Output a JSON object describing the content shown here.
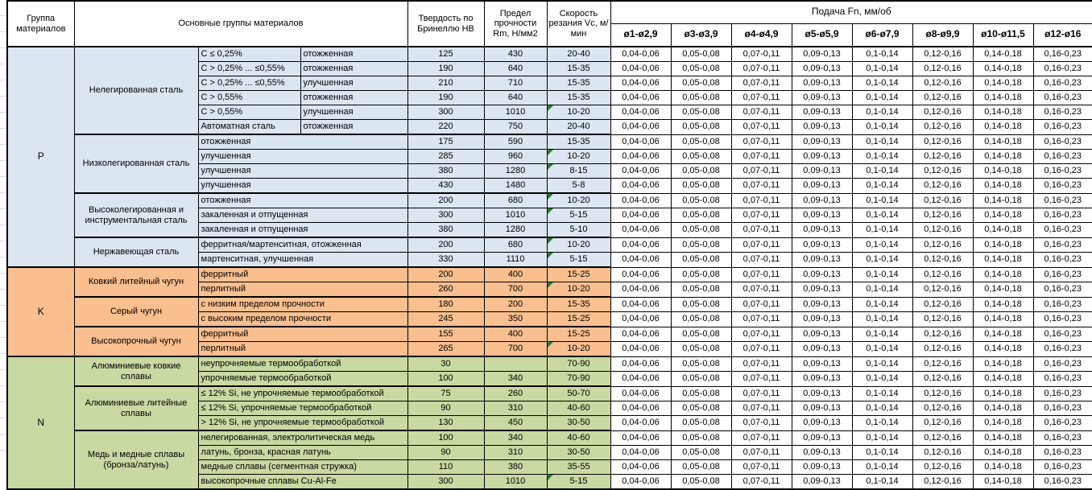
{
  "header": {
    "col_group": "Группа материалов",
    "col_main": "Основные группы материалов",
    "col_hb": "Твердость по Бринеллю НВ",
    "col_rm": "Предел прочности Rm, Н/мм2",
    "col_vc": "Скорость резания Vc, м/мин",
    "feed_title": "Подача Fn, мм/об",
    "feed_cols": [
      "ø1-ø2,9",
      "ø3-ø3,9",
      "ø4-ø4,9",
      "ø5-ø5,9",
      "ø6-ø7,9",
      "ø8-ø9,9",
      "ø10-ø11,5",
      "ø12-ø16"
    ]
  },
  "feed_values": [
    "0,04-0,06",
    "0,05-0,08",
    "0,07-0,11",
    "0,09-0,13",
    "0,1-0,14",
    "0,12-0,16",
    "0,14-0,18",
    "0,16-0,23"
  ],
  "flag_color": "#2e7d32",
  "groups": [
    {
      "code": "P",
      "color": "#dce6f1",
      "subgroups": [
        {
          "name": "Нелегированная сталь",
          "rows": [
            {
              "c1": "С ≤ 0,25%",
              "c2": "отожженная",
              "hb": "125",
              "rm": "430",
              "vc": "20-40",
              "flag": false
            },
            {
              "c1": "С > 0,25% ... ≤0,55%",
              "c2": "отожженная",
              "hb": "190",
              "rm": "640",
              "vc": "15-35",
              "flag": false
            },
            {
              "c1": "С > 0,25% ... ≤0,55%",
              "c2": "улучшенная",
              "hb": "210",
              "rm": "710",
              "vc": "15-35",
              "flag": false
            },
            {
              "c1": "С > 0,55%",
              "c2": "отожженная",
              "hb": "190",
              "rm": "640",
              "vc": "15-35",
              "flag": false
            },
            {
              "c1": "С > 0,55%",
              "c2": "улучшенная",
              "hb": "300",
              "rm": "1010",
              "vc": "10-20",
              "flag": true
            },
            {
              "c1": "Автоматная сталь",
              "c2": "отожженная",
              "hb": "220",
              "rm": "750",
              "vc": "20-40",
              "flag": false
            }
          ]
        },
        {
          "name": "Низколегированная сталь",
          "rows": [
            {
              "c1": "отожженная",
              "hb": "175",
              "rm": "590",
              "vc": "15-35",
              "flag": false
            },
            {
              "c1": "улучшенная",
              "hb": "285",
              "rm": "960",
              "vc": "10-20",
              "flag": true
            },
            {
              "c1": "улучшенная",
              "hb": "380",
              "rm": "1280",
              "vc": "8-15",
              "flag": true
            },
            {
              "c1": "улучшенная",
              "hb": "430",
              "rm": "1480",
              "vc": "5-8",
              "flag": false
            }
          ]
        },
        {
          "name": "Высоколегированная и инструментальная сталь",
          "rows": [
            {
              "c1": "отожженная",
              "hb": "200",
              "rm": "680",
              "vc": "10-20",
              "flag": true
            },
            {
              "c1": "закаленная и отпущенная",
              "hb": "300",
              "rm": "1010",
              "vc": "5-15",
              "flag": true
            },
            {
              "c1": "закаленная и отпущенная",
              "hb": "380",
              "rm": "1280",
              "vc": "5-10",
              "flag": false
            }
          ]
        },
        {
          "name": "Нержавеющая сталь",
          "rows": [
            {
              "c1": "ферритная/мартенситная, отожженная",
              "hb": "200",
              "rm": "680",
              "vc": "10-20",
              "flag": true
            },
            {
              "c1": "мартенситная, улучшенная",
              "hb": "330",
              "rm": "1110",
              "vc": "5-15",
              "flag": true
            }
          ]
        }
      ]
    },
    {
      "code": "K",
      "color": "#fabf8f",
      "subgroups": [
        {
          "name": "Ковкий литейный чугун",
          "rows": [
            {
              "c1": "ферритный",
              "hb": "200",
              "rm": "400",
              "vc": "15-25",
              "flag": false
            },
            {
              "c1": "перлитный",
              "hb": "260",
              "rm": "700",
              "vc": "10-20",
              "flag": true
            }
          ]
        },
        {
          "name": "Серый чугун",
          "rows": [
            {
              "c1": "с низким пределом прочности",
              "hb": "180",
              "rm": "200",
              "vc": "15-35",
              "flag": false
            },
            {
              "c1": "с высоким пределом прочности",
              "hb": "245",
              "rm": "350",
              "vc": "15-25",
              "flag": false
            }
          ]
        },
        {
          "name": "Высокопрочный чугун",
          "rows": [
            {
              "c1": "ферритный",
              "hb": "155",
              "rm": "400",
              "vc": "15-25",
              "flag": false
            },
            {
              "c1": "перлитный",
              "hb": "265",
              "rm": "700",
              "vc": "10-20",
              "flag": true
            }
          ]
        }
      ]
    },
    {
      "code": "N",
      "color": "#c8d9a2",
      "subgroups": [
        {
          "name": "Алюминиевые ковкие сплавы",
          "rows": [
            {
              "c1": "неупрочняемые термообработкой",
              "hb": "30",
              "rm": "",
              "vc": "70-90",
              "flag": false
            },
            {
              "c1": "упрочняемые термообработкой",
              "hb": "100",
              "rm": "340",
              "vc": "70-90",
              "flag": false
            }
          ]
        },
        {
          "name": "Алюминиевые литейные сплавы",
          "rows": [
            {
              "c1": "≤ 12% Si, не упрочняемые термообработкой",
              "hb": "75",
              "rm": "260",
              "vc": "50-70",
              "flag": false
            },
            {
              "c1": "≤ 12% Si, упрочняемые термообработкой",
              "hb": "90",
              "rm": "310",
              "vc": "40-60",
              "flag": false
            },
            {
              "c1": "> 12% Si, не упрочняемые термообработкой",
              "hb": "130",
              "rm": "450",
              "vc": "30-50",
              "flag": false
            }
          ]
        },
        {
          "name": "Медь и медные сплавы (бронза/латунь)",
          "rows": [
            {
              "c1": "нелегированная, электролитическая медь",
              "hb": "100",
              "rm": "340",
              "vc": "40-60",
              "flag": false
            },
            {
              "c1": "латунь, бронза, красная латунь",
              "hb": "90",
              "rm": "310",
              "vc": "30-50",
              "flag": false
            },
            {
              "c1": "медные сплавы (сегментная стружка)",
              "hb": "110",
              "rm": "380",
              "vc": "35-55",
              "flag": false
            },
            {
              "c1": "высокопрочные сплавы Cu-Al-Fe",
              "hb": "300",
              "rm": "1010",
              "vc": "5-15",
              "flag": true
            }
          ]
        }
      ]
    }
  ]
}
